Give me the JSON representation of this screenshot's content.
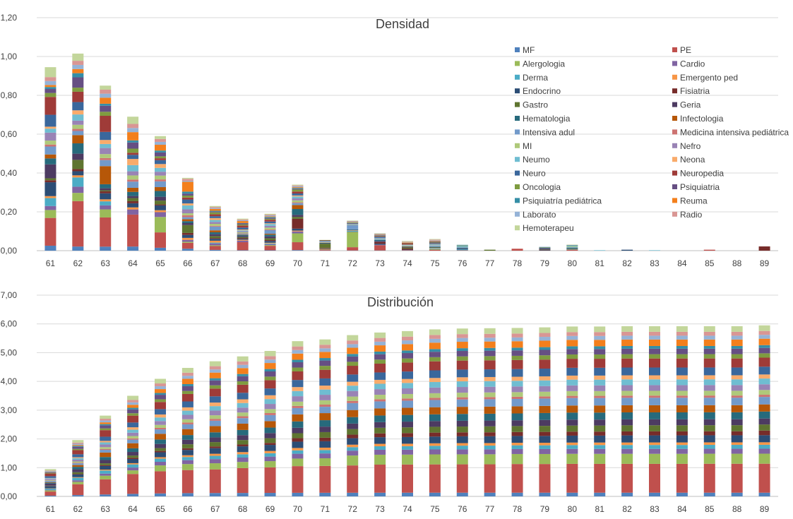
{
  "chart_data": [
    {
      "type": "bar",
      "stacked": true,
      "title": "Densidad",
      "xlabel": "",
      "ylabel": "",
      "ylim": [
        0,
        1.2
      ],
      "yticks": [
        "0,00",
        "0,20",
        "0,40",
        "0,60",
        "0,80",
        "1,00",
        "1,20"
      ],
      "grid": true,
      "legend_position": "right",
      "categories": [
        "61",
        "62",
        "63",
        "64",
        "65",
        "66",
        "67",
        "68",
        "69",
        "70",
        "71",
        "72",
        "73",
        "74",
        "75",
        "76",
        "77",
        "78",
        "79",
        "80",
        "81",
        "82",
        "83",
        "84",
        "85",
        "88",
        "89"
      ],
      "totals": [
        0.945,
        1.015,
        0.85,
        0.69,
        0.59,
        0.375,
        0.23,
        0.165,
        0.19,
        0.34,
        0.055,
        0.155,
        0.09,
        0.05,
        0.06,
        0.03,
        0.005,
        0.01,
        0.02,
        0.03,
        0.002,
        0.005,
        0.002,
        0,
        0.005,
        0,
        0.022
      ],
      "series": [
        {
          "name": "MF",
          "values": [
            0.025,
            0.02,
            0.02,
            0.02,
            0.015,
            0.01,
            0.004,
            0.002,
            0.002,
            0.003,
            0.001,
            0.001,
            0.001,
            0.001,
            0,
            0,
            0,
            0,
            0,
            0,
            0,
            0,
            0,
            0,
            0,
            0,
            0
          ]
        },
        {
          "name": "PE",
          "values": [
            0.14,
            0.22,
            0.145,
            0.155,
            0.08,
            0.03,
            0.02,
            0.04,
            0.025,
            0.04,
            0.005,
            0.016,
            0.025,
            0.002,
            0.005,
            0.002,
            0,
            0.01,
            0,
            0.005,
            0,
            0,
            0,
            0,
            0.005,
            0,
            0
          ]
        },
        {
          "name": "Alergologia",
          "values": [
            0.04,
            0.04,
            0.04,
            0,
            0.08,
            0.005,
            0.004,
            0,
            0.004,
            0.045,
            0.003,
            0.075,
            0,
            0,
            0.003,
            0,
            0,
            0,
            0,
            0.001,
            0,
            0,
            0,
            0,
            0,
            0,
            0
          ]
        },
        {
          "name": "Cardio",
          "values": [
            0.02,
            0.03,
            0.02,
            0.025,
            0.025,
            0.01,
            0.01,
            0.008,
            0.005,
            0.01,
            0,
            0.002,
            0.002,
            0,
            0,
            0,
            0,
            0,
            0,
            0,
            0,
            0,
            0,
            0,
            0,
            0,
            0
          ]
        },
        {
          "name": "Derma",
          "values": [
            0.04,
            0.045,
            0.02,
            0,
            0,
            0,
            0.004,
            0,
            0.004,
            0,
            0,
            0.004,
            0,
            0,
            0.004,
            0.005,
            0,
            0,
            0,
            0.001,
            0.002,
            0,
            0.002,
            0,
            0,
            0,
            0
          ]
        },
        {
          "name": "Emergento ped",
          "values": [
            0.01,
            0.01,
            0.01,
            0.01,
            0.01,
            0.01,
            0.01,
            0.004,
            0.004,
            0.004,
            0,
            0.002,
            0,
            0,
            0.002,
            0,
            0,
            0,
            0,
            0,
            0,
            0,
            0,
            0,
            0,
            0,
            0
          ]
        },
        {
          "name": "Endocrino",
          "values": [
            0.07,
            0.02,
            0.03,
            0.02,
            0.025,
            0.015,
            0.01,
            0.005,
            0.01,
            0.01,
            0.002,
            0.003,
            0.005,
            0.002,
            0.002,
            0.002,
            0,
            0,
            0.002,
            0.002,
            0,
            0.005,
            0,
            0,
            0,
            0,
            0
          ]
        },
        {
          "name": "Fisiatria",
          "values": [
            0.01,
            0.01,
            0.01,
            0.01,
            0.005,
            0.01,
            0.004,
            0.004,
            0.005,
            0.05,
            0.003,
            0,
            0.008,
            0.005,
            0,
            0,
            0,
            0,
            0.002,
            0,
            0,
            0,
            0,
            0,
            0,
            0,
            0.022
          ]
        },
        {
          "name": "Gastro",
          "values": [
            0.01,
            0.045,
            0.005,
            0.015,
            0.02,
            0.04,
            0.01,
            0.004,
            0.01,
            0.01,
            0.02,
            0,
            0,
            0.005,
            0.002,
            0,
            0.005,
            0,
            0.002,
            0.002,
            0,
            0,
            0,
            0,
            0,
            0,
            0
          ]
        },
        {
          "name": "Geria",
          "values": [
            0.07,
            0.03,
            0.01,
            0.01,
            0.02,
            0.01,
            0.01,
            0.005,
            0.01,
            0.01,
            0.002,
            0,
            0.005,
            0.002,
            0,
            0.002,
            0,
            0,
            0.006,
            0,
            0,
            0,
            0,
            0,
            0,
            0,
            0
          ]
        },
        {
          "name": "Hematologia",
          "values": [
            0.03,
            0.05,
            0.02,
            0.02,
            0.03,
            0.01,
            0.01,
            0.005,
            0.01,
            0.03,
            0.002,
            0.002,
            0.005,
            0.002,
            0.002,
            0.003,
            0,
            0,
            0.002,
            0.003,
            0,
            0,
            0,
            0,
            0,
            0,
            0
          ]
        },
        {
          "name": "Infectologia",
          "values": [
            0.02,
            0.04,
            0.09,
            0.02,
            0.02,
            0.01,
            0.01,
            0.002,
            0.005,
            0.02,
            0.001,
            0,
            0,
            0.002,
            0,
            0,
            0,
            0,
            0,
            0,
            0,
            0,
            0,
            0,
            0,
            0,
            0
          ]
        },
        {
          "name": "Intensiva adul",
          "values": [
            0.04,
            0.02,
            0.03,
            0.03,
            0.03,
            0.01,
            0.02,
            0.005,
            0.02,
            0.01,
            0.001,
            0.02,
            0.004,
            0.002,
            0.004,
            0.004,
            0,
            0,
            0,
            0.004,
            0,
            0,
            0,
            0,
            0,
            0,
            0
          ]
        },
        {
          "name": "Medicina intensiva pediátrica",
          "values": [
            0.01,
            0.01,
            0.01,
            0.01,
            0.01,
            0.01,
            0.004,
            0.002,
            0.004,
            0.004,
            0,
            0,
            0,
            0,
            0,
            0,
            0,
            0,
            0,
            0,
            0,
            0,
            0,
            0,
            0,
            0,
            0
          ]
        },
        {
          "name": "MI",
          "values": [
            0.02,
            0.02,
            0.02,
            0.02,
            0.02,
            0.01,
            0.01,
            0.005,
            0.01,
            0.01,
            0.002,
            0.002,
            0.002,
            0.002,
            0.002,
            0.002,
            0,
            0,
            0,
            0.004,
            0,
            0,
            0,
            0,
            0,
            0,
            0
          ]
        },
        {
          "name": "Nefro",
          "values": [
            0.04,
            0.02,
            0.03,
            0.02,
            0.02,
            0.02,
            0.01,
            0.005,
            0.01,
            0.01,
            0.002,
            0.002,
            0.002,
            0,
            0.002,
            0,
            0,
            0,
            0,
            0,
            0,
            0,
            0,
            0,
            0,
            0,
            0
          ]
        },
        {
          "name": "Neumo",
          "values": [
            0.02,
            0.03,
            0.02,
            0.03,
            0.02,
            0.02,
            0.01,
            0.005,
            0.01,
            0.01,
            0.002,
            0.002,
            0.002,
            0.002,
            0.004,
            0.004,
            0,
            0,
            0,
            0.004,
            0,
            0,
            0,
            0,
            0,
            0,
            0
          ]
        },
        {
          "name": "Neona",
          "values": [
            0.01,
            0.02,
            0.02,
            0.03,
            0.02,
            0.01,
            0.01,
            0.004,
            0.004,
            0.005,
            0,
            0,
            0,
            0.002,
            0.002,
            0,
            0,
            0,
            0,
            0,
            0,
            0,
            0,
            0,
            0,
            0,
            0
          ]
        },
        {
          "name": "Neuro",
          "values": [
            0.06,
            0.04,
            0.04,
            0.02,
            0.02,
            0.02,
            0.01,
            0.01,
            0.01,
            0.01,
            0.002,
            0.003,
            0.005,
            0.002,
            0.005,
            0.002,
            0,
            0,
            0.002,
            0.002,
            0,
            0,
            0,
            0,
            0,
            0,
            0
          ]
        },
        {
          "name": "Neuropedia",
          "values": [
            0.09,
            0.05,
            0.08,
            0.01,
            0.01,
            0.01,
            0.01,
            0.01,
            0.01,
            0.01,
            0.002,
            0.002,
            0.003,
            0.005,
            0.002,
            0,
            0,
            0,
            0,
            0,
            0,
            0,
            0,
            0,
            0,
            0,
            0
          ]
        },
        {
          "name": "Oncologia",
          "values": [
            0.02,
            0.02,
            0.02,
            0.02,
            0.01,
            0.01,
            0.01,
            0.005,
            0.005,
            0.01,
            0.002,
            0.002,
            0.002,
            0.002,
            0.002,
            0.002,
            0,
            0,
            0.002,
            0.002,
            0,
            0,
            0,
            0,
            0,
            0,
            0
          ]
        },
        {
          "name": "Psiquiatria",
          "values": [
            0.02,
            0.05,
            0.03,
            0.03,
            0.02,
            0.01,
            0.004,
            0.005,
            0.005,
            0.004,
            0,
            0,
            0.002,
            0,
            0.002,
            0,
            0,
            0,
            0,
            0,
            0,
            0,
            0,
            0,
            0,
            0,
            0
          ]
        },
        {
          "name": "Psiquiatría pediátrica",
          "values": [
            0.01,
            0.02,
            0.01,
            0.01,
            0.01,
            0.01,
            0.004,
            0.002,
            0.005,
            0.004,
            0,
            0.002,
            0.002,
            0,
            0.002,
            0.002,
            0,
            0,
            0,
            0,
            0,
            0,
            0,
            0,
            0,
            0,
            0
          ]
        },
        {
          "name": "Reuma",
          "values": [
            0.01,
            0.02,
            0.03,
            0.04,
            0.03,
            0.05,
            0.01,
            0.01,
            0.004,
            0.004,
            0,
            0.002,
            0.002,
            0.002,
            0.003,
            0,
            0,
            0,
            0,
            0,
            0,
            0,
            0,
            0,
            0,
            0,
            0
          ]
        },
        {
          "name": "Laborato",
          "values": [
            0.02,
            0.02,
            0.02,
            0.02,
            0.015,
            0.005,
            0.005,
            0.004,
            0.005,
            0.005,
            0,
            0.002,
            0.002,
            0.002,
            0.003,
            0,
            0,
            0,
            0.002,
            0,
            0,
            0,
            0,
            0,
            0,
            0,
            0
          ]
        },
        {
          "name": "Radio",
          "values": [
            0.02,
            0.02,
            0.02,
            0.02,
            0.015,
            0.01,
            0.005,
            0.004,
            0.004,
            0.004,
            0,
            0.002,
            0.002,
            0.002,
            0.003,
            0,
            0,
            0,
            0,
            0,
            0,
            0,
            0,
            0,
            0,
            0,
            0
          ]
        },
        {
          "name": "Hemoterapeu",
          "values": [
            0.05,
            0.035,
            0.02,
            0.035,
            0.015,
            0.005,
            0.005,
            0.004,
            0.005,
            0.004,
            0,
            0.002,
            0.002,
            0.003,
            0.003,
            0,
            0,
            0,
            0,
            0,
            0,
            0,
            0,
            0,
            0,
            0,
            0
          ]
        }
      ]
    },
    {
      "type": "bar",
      "stacked": true,
      "title": "Distribución",
      "xlabel": "",
      "ylabel": "",
      "ylim": [
        0,
        7
      ],
      "yticks": [
        "0,00",
        "1,00",
        "2,00",
        "3,00",
        "4,00",
        "5,00",
        "6,00",
        "7,00"
      ],
      "grid": true,
      "categories": [
        "61",
        "62",
        "63",
        "64",
        "65",
        "66",
        "67",
        "68",
        "69",
        "70",
        "71",
        "72",
        "73",
        "74",
        "75",
        "76",
        "77",
        "78",
        "79",
        "80",
        "81",
        "82",
        "83",
        "84",
        "85",
        "88",
        "89"
      ],
      "totals": [
        0.95,
        1.96,
        2.81,
        3.5,
        4.09,
        4.47,
        4.7,
        4.87,
        5.06,
        5.4,
        5.46,
        5.61,
        5.7,
        5.75,
        5.81,
        5.84,
        5.85,
        5.86,
        5.88,
        5.91,
        5.91,
        5.92,
        5.92,
        5.92,
        5.92,
        5.92,
        5.95
      ]
    }
  ]
}
